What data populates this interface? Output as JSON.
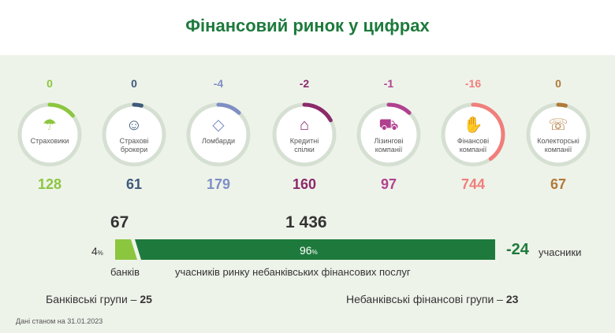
{
  "title": "Фінансовий ринок у цифрах",
  "categories": [
    {
      "delta": "0",
      "label": "Страховики",
      "count": "128",
      "icon": "umbrella-icon",
      "glyph": "☂",
      "color": "#8cc63f",
      "fill": 0.14
    },
    {
      "delta": "0",
      "label": "Страхові\nброкери",
      "count": "61",
      "icon": "people-icon",
      "glyph": "☺",
      "color": "#3e5a7a",
      "fill": 0.04
    },
    {
      "delta": "-4",
      "label": "Ломбарди",
      "count": "179",
      "icon": "diamond-icon",
      "glyph": "◇",
      "color": "#7f8fc4",
      "fill": 0.12
    },
    {
      "delta": "-2",
      "label": "Кредитні\nспілки",
      "count": "160",
      "icon": "handshake-icon",
      "glyph": "⌂",
      "color": "#8b2a6a",
      "fill": 0.17
    },
    {
      "delta": "-1",
      "label": "Лізингові\nкомпанії",
      "count": "97",
      "icon": "car-icon",
      "glyph": "⛟",
      "color": "#b0418f",
      "fill": 0.12
    },
    {
      "delta": "-16",
      "label": "Фінансові\nкомпанії",
      "count": "744",
      "icon": "hand-coin-icon",
      "glyph": "✋",
      "color": "#f07f7b",
      "fill": 0.4
    },
    {
      "delta": "0",
      "label": "Колекторські\nкомпанії",
      "count": "67",
      "icon": "phone-icon",
      "glyph": "☏",
      "color": "#b07a3a",
      "fill": 0.04
    }
  ],
  "banks": {
    "count": "67",
    "pct": "4",
    "label": "банків"
  },
  "nonbank": {
    "count": "1 436",
    "pct": "96",
    "label": "учасників ринку небанківських фінансових послуг"
  },
  "change": {
    "value": "-24",
    "label": "учасники"
  },
  "pct_sign": "%",
  "bank_groups": {
    "label": "Банківські групи –",
    "value": "25"
  },
  "nonbank_groups": {
    "label": "Небанківські фінансові групи –",
    "value": "23"
  },
  "footnote": "Дані станом на 31.01.2023",
  "colors": {
    "title": "#1e7a3c",
    "bar_dark": "#1e7a3c",
    "bar_light": "#8cc63f",
    "ring_track": "#d5dfd2",
    "panel": "#eef3ea"
  }
}
